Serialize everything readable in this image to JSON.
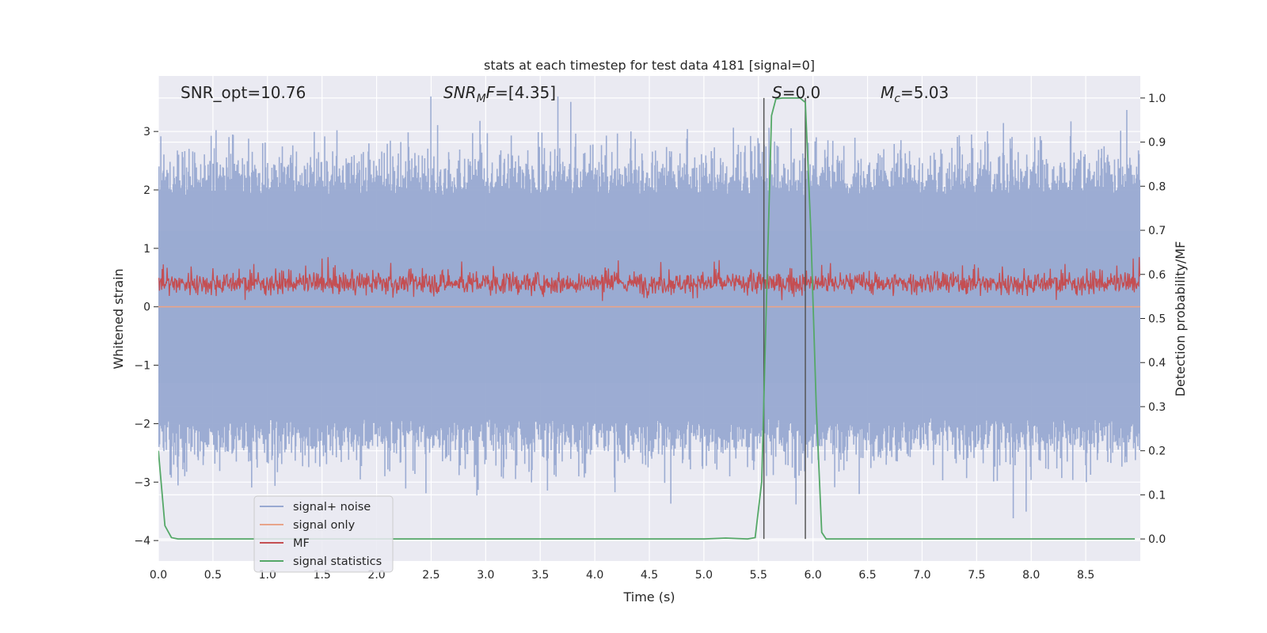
{
  "colors": {
    "background": "#eaeaf2",
    "grid": "#ffffff",
    "signal_noise": "#98a9d1",
    "signal_only": "#e8a48a",
    "mf": "#c44e52",
    "signal_statistics": "#55a868",
    "vline": "#555555"
  },
  "chart_data": {
    "type": "line",
    "title": "stats at each timestep for test data 4181 [signal=0]",
    "xlabel": "Time (s)",
    "ylabel": "Whitened strain",
    "ylabel_right": "Detection probability/MF",
    "xlim": [
      0,
      9
    ],
    "ylim": [
      -4.35,
      3.95
    ],
    "ylim_right": [
      -0.05,
      1.05
    ],
    "x_ticks": [
      "0.0",
      "0.5",
      "1.0",
      "1.5",
      "2.0",
      "2.5",
      "3.0",
      "3.5",
      "4.0",
      "4.5",
      "5.0",
      "5.5",
      "6.0",
      "6.5",
      "7.0",
      "7.5",
      "8.0",
      "8.5"
    ],
    "y_ticks": [
      "3",
      "2",
      "1",
      "0",
      "−1",
      "−2",
      "−3",
      "−4"
    ],
    "y_ticks_right": [
      "1.0",
      "0.9",
      "0.8",
      "0.7",
      "0.6",
      "0.5",
      "0.4",
      "0.3",
      "0.2",
      "0.1",
      "0.0"
    ],
    "grid": true,
    "legend_position": "lower-left",
    "annotations": {
      "snr_opt": "SNR_opt=10.76",
      "snr_mf_prefix": "SNR",
      "snr_mf_sub": "M",
      "snr_mf_suffix": "F",
      "snr_mf_value": "=[4.35]",
      "s_label": "S",
      "s_value": "=0.0",
      "mc_label": "M",
      "mc_sub": "c",
      "mc_value": "=5.03"
    },
    "vertical_lines": [
      5.55,
      5.93
    ],
    "series": [
      {
        "name": "signal+ noise",
        "description": "noisy whitened strain, approx. range -4.0 to 3.6",
        "range": [
          -4.0,
          3.6
        ]
      },
      {
        "name": "signal only",
        "values_constant": 0.0
      },
      {
        "name": "MF",
        "description": "matched filter output on right axis, approx. 0.52-0.66",
        "range": [
          0.53,
          0.66
        ]
      },
      {
        "name": "signal statistics",
        "x": [
          0.0,
          0.06,
          0.12,
          0.18,
          0.3,
          0.5,
          1.0,
          2.0,
          3.0,
          4.0,
          4.5,
          5.0,
          5.2,
          5.4,
          5.47,
          5.53,
          5.58,
          5.62,
          5.66,
          5.72,
          5.8,
          5.88,
          5.93,
          5.98,
          6.03,
          6.08,
          6.12,
          6.5,
          7.0,
          8.0,
          8.95
        ],
        "values": [
          0.2,
          0.03,
          0.003,
          0.0,
          0.0,
          0.0,
          0.0,
          0.0,
          0.0,
          0.0,
          0.0,
          0.0,
          0.002,
          0.0,
          0.003,
          0.13,
          0.6,
          0.96,
          0.998,
          1.0,
          1.0,
          1.0,
          0.99,
          0.7,
          0.3,
          0.015,
          0.0,
          0.0,
          0.0,
          0.0,
          0.0
        ]
      }
    ]
  }
}
